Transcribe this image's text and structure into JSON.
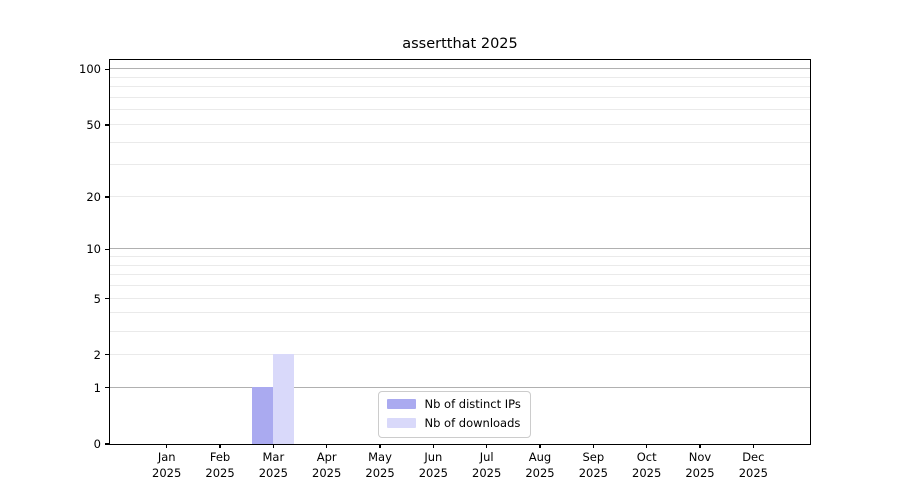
{
  "figure": {
    "title": "assertthat 2025"
  },
  "chart_data": {
    "type": "bar",
    "title": "assertthat 2025",
    "categories": [
      "Jan",
      "Feb",
      "Mar",
      "Apr",
      "May",
      "Jun",
      "Jul",
      "Aug",
      "Sep",
      "Oct",
      "Nov",
      "Dec"
    ],
    "x_tick_second_line": "2025",
    "series": [
      {
        "name": "Nb of distinct IPs",
        "color": "#aaaaf0",
        "values": [
          0,
          0,
          1,
          0,
          0,
          0,
          0,
          0,
          0,
          0,
          0,
          0
        ]
      },
      {
        "name": "Nb of downloads",
        "color": "#d9d9fa",
        "values": [
          0,
          0,
          2,
          0,
          0,
          0,
          0,
          0,
          0,
          0,
          0,
          0
        ]
      }
    ],
    "yscale": "log1p",
    "yticks": [
      0,
      1,
      2,
      5,
      10,
      20,
      50,
      100
    ],
    "ylim": [
      0,
      112.5
    ],
    "major_gridlines": [
      1,
      10,
      100
    ],
    "minor_gridlines": [
      2,
      3,
      4,
      5,
      6,
      7,
      8,
      9,
      20,
      30,
      40,
      50,
      60,
      70,
      80,
      90
    ],
    "grid_major_color": "#b0b0b0",
    "grid_minor_color": "#eaeaea",
    "legend_position": "lower center"
  }
}
